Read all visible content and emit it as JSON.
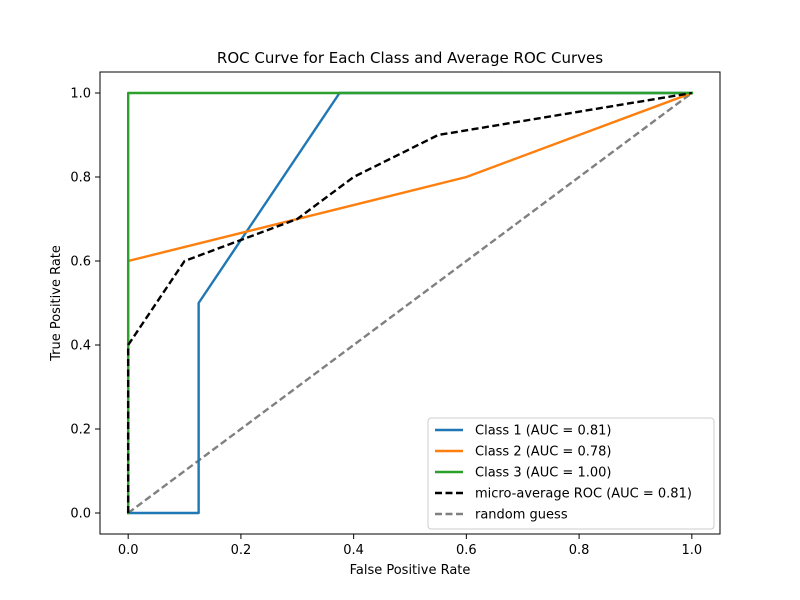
{
  "chart_data": {
    "type": "line",
    "title": "ROC Curve for Each Class and Average ROC Curves",
    "xlabel": "False Positive Rate",
    "ylabel": "True Positive Rate",
    "xlim": [
      -0.05,
      1.05
    ],
    "ylim": [
      -0.05,
      1.05
    ],
    "xticks": [
      "0.0",
      "0.2",
      "0.4",
      "0.6",
      "0.8",
      "1.0"
    ],
    "yticks": [
      "0.0",
      "0.2",
      "0.4",
      "0.6",
      "0.8",
      "1.0"
    ],
    "grid": false,
    "legend_position": "lower-right",
    "series": [
      {
        "name": "Class 1 (AUC = 0.81)",
        "color": "#1f77b4",
        "dash": "solid",
        "x": [
          0.0,
          0.125,
          0.125,
          0.375,
          1.0
        ],
        "y": [
          0.0,
          0.0,
          0.5,
          1.0,
          1.0
        ]
      },
      {
        "name": "Class 2 (AUC = 0.78)",
        "color": "#ff7f0e",
        "dash": "solid",
        "x": [
          0.0,
          0.0,
          0.6,
          1.0
        ],
        "y": [
          0.0,
          0.6,
          0.8,
          1.0
        ]
      },
      {
        "name": "Class 3 (AUC = 1.00)",
        "color": "#2ca02c",
        "dash": "solid",
        "x": [
          0.0,
          0.0,
          1.0
        ],
        "y": [
          0.0,
          1.0,
          1.0
        ]
      },
      {
        "name": "micro-average ROC (AUC = 0.81)",
        "color": "#000000",
        "dash": "dashed",
        "x": [
          0.0,
          0.0,
          0.1,
          0.2,
          0.3,
          0.4,
          0.55,
          1.0
        ],
        "y": [
          0.0,
          0.4,
          0.6,
          0.65,
          0.7,
          0.8,
          0.9,
          1.0
        ]
      },
      {
        "name": "random guess",
        "color": "#808080",
        "dash": "dashed",
        "x": [
          0.0,
          1.0
        ],
        "y": [
          0.0,
          1.0
        ]
      }
    ]
  }
}
